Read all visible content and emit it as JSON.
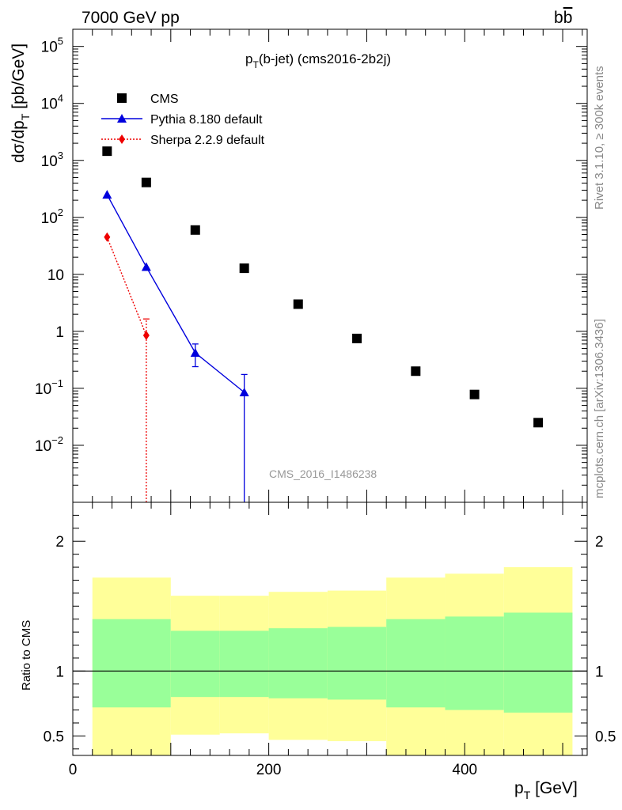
{
  "header": {
    "left": "7000 GeV pp",
    "right_main": "b",
    "right_bar": "b"
  },
  "side_labels": {
    "rivet": "Rivet 3.1.10, ≥ 300k events",
    "mcplots": "mcplots.cern.ch [arXiv:1306.3436]"
  },
  "chart_data": [
    {
      "type": "scatter",
      "scale": "log",
      "title_main": "p",
      "title_sub": "T",
      "title_rest": "(b-jet) (cms2016-2b2j)",
      "watermark": "CMS_2016_I1486238",
      "ylabel_main": "dσ/dp",
      "ylabel_sub": "T",
      "ylabel_rest": " [pb/GeV]",
      "xlim": [
        0,
        525
      ],
      "ylim": [
        0.001,
        200000
      ],
      "yticks": [
        {
          "v": 0.01,
          "base": "10",
          "exp": "−2"
        },
        {
          "v": 0.1,
          "base": "10",
          "exp": "−1"
        },
        {
          "v": 1,
          "base": "1",
          "exp": ""
        },
        {
          "v": 10,
          "base": "10",
          "exp": ""
        },
        {
          "v": 100,
          "base": "10",
          "exp": "2"
        },
        {
          "v": 1000,
          "base": "10",
          "exp": "3"
        },
        {
          "v": 10000,
          "base": "10",
          "exp": "4"
        },
        {
          "v": 100000,
          "base": "10",
          "exp": "5"
        }
      ],
      "legend": {
        "position": "top-left",
        "entries": [
          "CMS",
          "Pythia 8.180 default",
          "Sherpa 2.2.9 default"
        ]
      },
      "series": [
        {
          "name": "CMS",
          "marker": "square",
          "color": "#000000",
          "x": [
            35,
            75,
            125,
            175,
            230,
            290,
            350,
            410,
            475
          ],
          "y": [
            1450.0,
            410.0,
            60.0,
            12.8,
            3.0,
            0.75,
            0.2,
            0.078,
            0.025
          ]
        },
        {
          "name": "Pythia 8.180 default",
          "marker": "triangle",
          "color": "#0000dd",
          "line": "solid",
          "x": [
            35,
            75,
            125,
            175
          ],
          "y": [
            250,
            13.5,
            0.42,
            0.085
          ],
          "err_lo": [
            0,
            0,
            0.18,
            0.085
          ],
          "err_hi": [
            0,
            0,
            0.18,
            0.09
          ]
        },
        {
          "name": "Sherpa 2.2.9 default",
          "marker": "diamond",
          "color": "#ee0000",
          "line": "dotted",
          "x": [
            35,
            75
          ],
          "y": [
            45,
            0.85
          ],
          "err_lo": [
            0,
            0.85
          ],
          "err_hi": [
            0,
            0.8
          ]
        }
      ]
    },
    {
      "type": "area",
      "ylabel": "Ratio to CMS",
      "xlabel_main": "p",
      "xlabel_sub": "T",
      "xlabel_rest": " [GeV]",
      "xlim": [
        0,
        525
      ],
      "ylim": [
        0.35,
        2.3
      ],
      "xticks": [
        0,
        200,
        400
      ],
      "yticks": [
        0.5,
        1,
        2
      ],
      "reference_line": 1,
      "bins": [
        {
          "lo": 20,
          "hi": 100,
          "inner": [
            0.72,
            1.4
          ],
          "outer": [
            0.35,
            1.72
          ]
        },
        {
          "lo": 100,
          "hi": 150,
          "inner": [
            0.8,
            1.31
          ],
          "outer": [
            0.51,
            1.58
          ]
        },
        {
          "lo": 150,
          "hi": 200,
          "inner": [
            0.8,
            1.31
          ],
          "outer": [
            0.52,
            1.58
          ]
        },
        {
          "lo": 200,
          "hi": 260,
          "inner": [
            0.79,
            1.33
          ],
          "outer": [
            0.47,
            1.61
          ]
        },
        {
          "lo": 260,
          "hi": 320,
          "inner": [
            0.78,
            1.34
          ],
          "outer": [
            0.46,
            1.62
          ]
        },
        {
          "lo": 320,
          "hi": 380,
          "inner": [
            0.72,
            1.4
          ],
          "outer": [
            0.35,
            1.72
          ]
        },
        {
          "lo": 380,
          "hi": 440,
          "inner": [
            0.7,
            1.42
          ],
          "outer": [
            0.35,
            1.75
          ]
        },
        {
          "lo": 440,
          "hi": 510,
          "inner": [
            0.68,
            1.45
          ],
          "outer": [
            0.35,
            1.8
          ]
        }
      ],
      "colors": {
        "inner": "#99ff99",
        "outer": "#ffff99"
      }
    }
  ]
}
